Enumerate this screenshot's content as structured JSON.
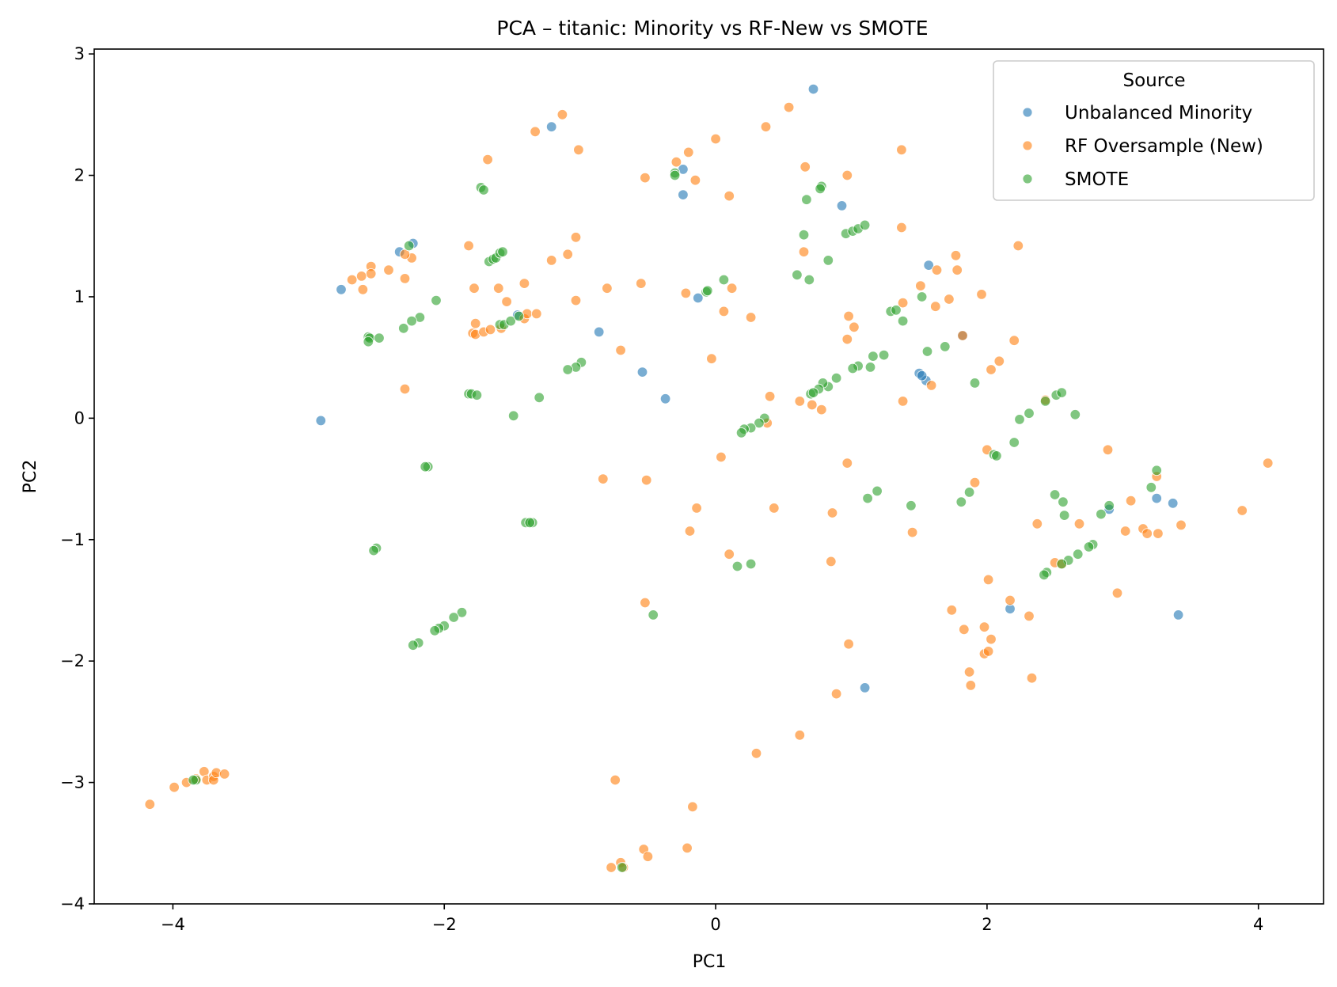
{
  "chart_data": {
    "type": "scatter",
    "title": "PCA – titanic: Minority vs RF-New vs SMOTE",
    "xlabel": "PC1",
    "ylabel": "PC2",
    "xlim": [
      -4.58,
      4.48
    ],
    "ylim": [
      -4.0,
      3.04
    ],
    "xticks": [
      -4,
      -2,
      0,
      2,
      4
    ],
    "yticks": [
      -4,
      -3,
      -2,
      -1,
      0,
      1,
      2,
      3
    ],
    "xtick_labels": [
      "−4",
      "−2",
      "0",
      "2",
      "4"
    ],
    "ytick_labels": [
      "−4",
      "−3",
      "−2",
      "−1",
      "0",
      "1",
      "2",
      "3"
    ],
    "grid": false,
    "legend": {
      "title": "Source",
      "placement": "top-right"
    },
    "series": [
      {
        "name": "Unbalanced Minority",
        "color": "#1f77b4",
        "points": [
          [
            0.72,
            2.71
          ],
          [
            -1.21,
            2.4
          ],
          [
            -0.24,
            2.05
          ],
          [
            -0.24,
            1.84
          ],
          [
            0.93,
            1.75
          ],
          [
            -2.76,
            1.06
          ],
          [
            -2.33,
            1.37
          ],
          [
            -2.23,
            1.44
          ],
          [
            -0.13,
            0.99
          ],
          [
            1.57,
            1.26
          ],
          [
            -1.46,
            0.85
          ],
          [
            -0.86,
            0.71
          ],
          [
            -0.54,
            0.38
          ],
          [
            -0.37,
            0.16
          ],
          [
            -2.91,
            -0.02
          ],
          [
            1.5,
            0.37
          ],
          [
            1.55,
            0.31
          ],
          [
            1.82,
            0.68
          ],
          [
            2.9,
            -0.75
          ],
          [
            3.25,
            -0.66
          ],
          [
            3.37,
            -0.7
          ],
          [
            2.17,
            -1.57
          ],
          [
            3.41,
            -1.62
          ],
          [
            1.1,
            -2.22
          ],
          [
            1.52,
            0.35
          ]
        ]
      },
      {
        "name": "RF Oversample (New)",
        "color": "#ff7f0e",
        "points": [
          [
            -1.13,
            2.5
          ],
          [
            -1.33,
            2.36
          ],
          [
            -1.01,
            2.21
          ],
          [
            -1.68,
            2.13
          ],
          [
            -0.52,
            1.98
          ],
          [
            -0.29,
            2.11
          ],
          [
            -0.2,
            2.19
          ],
          [
            -0.15,
            1.96
          ],
          [
            0.0,
            2.3
          ],
          [
            0.1,
            1.83
          ],
          [
            0.37,
            2.4
          ],
          [
            0.54,
            2.56
          ],
          [
            0.66,
            2.07
          ],
          [
            0.97,
            2.0
          ],
          [
            1.37,
            2.21
          ],
          [
            -1.03,
            1.49
          ],
          [
            -1.09,
            1.35
          ],
          [
            -1.21,
            1.3
          ],
          [
            -1.82,
            1.42
          ],
          [
            -2.24,
            1.32
          ],
          [
            -2.29,
            1.35
          ],
          [
            -2.54,
            1.25
          ],
          [
            -2.54,
            1.19
          ],
          [
            -2.61,
            1.17
          ],
          [
            -2.68,
            1.14
          ],
          [
            -2.6,
            1.06
          ],
          [
            -2.29,
            1.15
          ],
          [
            -2.41,
            1.22
          ],
          [
            -1.78,
            1.07
          ],
          [
            -1.6,
            1.07
          ],
          [
            -1.41,
            1.11
          ],
          [
            -1.03,
            0.97
          ],
          [
            -0.8,
            1.07
          ],
          [
            -0.55,
            1.11
          ],
          [
            -0.22,
            1.03
          ],
          [
            0.12,
            1.07
          ],
          [
            0.06,
            0.88
          ],
          [
            -0.03,
            0.49
          ],
          [
            0.26,
            0.83
          ],
          [
            -1.54,
            0.96
          ],
          [
            -1.77,
            0.78
          ],
          [
            -1.79,
            0.7
          ],
          [
            -1.77,
            0.69
          ],
          [
            -1.71,
            0.71
          ],
          [
            -1.66,
            0.73
          ],
          [
            -1.58,
            0.74
          ],
          [
            -1.41,
            0.82
          ],
          [
            -1.39,
            0.86
          ],
          [
            -1.32,
            0.86
          ],
          [
            -0.7,
            0.56
          ],
          [
            -2.29,
            0.24
          ],
          [
            0.65,
            1.37
          ],
          [
            1.37,
            1.57
          ],
          [
            1.51,
            1.09
          ],
          [
            1.38,
            0.95
          ],
          [
            1.63,
            1.22
          ],
          [
            1.62,
            0.92
          ],
          [
            1.72,
            0.98
          ],
          [
            1.77,
            1.34
          ],
          [
            1.78,
            1.22
          ],
          [
            1.96,
            1.02
          ],
          [
            1.82,
            0.68
          ],
          [
            2.23,
            1.42
          ],
          [
            0.98,
            0.84
          ],
          [
            1.02,
            0.75
          ],
          [
            0.97,
            0.65
          ],
          [
            0.4,
            0.18
          ],
          [
            0.62,
            0.14
          ],
          [
            0.71,
            0.11
          ],
          [
            0.78,
            0.07
          ],
          [
            1.38,
            0.14
          ],
          [
            1.59,
            0.27
          ],
          [
            2.03,
            0.4
          ],
          [
            2.2,
            0.64
          ],
          [
            2.09,
            0.47
          ],
          [
            2.43,
            0.15
          ],
          [
            0.38,
            -0.04
          ],
          [
            0.04,
            -0.32
          ],
          [
            0.97,
            -0.37
          ],
          [
            -0.83,
            -0.5
          ],
          [
            -0.51,
            -0.51
          ],
          [
            -0.14,
            -0.74
          ],
          [
            -0.19,
            -0.93
          ],
          [
            0.43,
            -0.74
          ],
          [
            0.86,
            -0.78
          ],
          [
            1.45,
            -0.94
          ],
          [
            0.1,
            -1.12
          ],
          [
            0.85,
            -1.18
          ],
          [
            2.0,
            -0.26
          ],
          [
            1.91,
            -0.53
          ],
          [
            2.89,
            -0.26
          ],
          [
            3.25,
            -0.48
          ],
          [
            3.06,
            -0.68
          ],
          [
            2.37,
            -0.87
          ],
          [
            2.68,
            -0.87
          ],
          [
            3.02,
            -0.93
          ],
          [
            3.15,
            -0.91
          ],
          [
            3.18,
            -0.95
          ],
          [
            3.26,
            -0.95
          ],
          [
            3.43,
            -0.88
          ],
          [
            3.88,
            -0.76
          ],
          [
            4.07,
            -0.37
          ],
          [
            2.01,
            -1.33
          ],
          [
            2.5,
            -1.19
          ],
          [
            2.55,
            -1.2
          ],
          [
            2.17,
            -1.5
          ],
          [
            2.31,
            -1.63
          ],
          [
            2.96,
            -1.44
          ],
          [
            1.74,
            -1.58
          ],
          [
            1.83,
            -1.74
          ],
          [
            1.98,
            -1.72
          ],
          [
            2.03,
            -1.82
          ],
          [
            1.98,
            -1.94
          ],
          [
            2.01,
            -1.92
          ],
          [
            1.87,
            -2.09
          ],
          [
            1.88,
            -2.2
          ],
          [
            2.33,
            -2.14
          ],
          [
            0.98,
            -1.86
          ],
          [
            -0.52,
            -1.52
          ],
          [
            0.89,
            -2.27
          ],
          [
            0.62,
            -2.61
          ],
          [
            0.3,
            -2.76
          ],
          [
            -0.74,
            -2.98
          ],
          [
            -0.17,
            -3.2
          ],
          [
            -0.21,
            -3.54
          ],
          [
            -0.53,
            -3.55
          ],
          [
            -0.5,
            -3.61
          ],
          [
            -0.7,
            -3.66
          ],
          [
            -0.77,
            -3.7
          ],
          [
            -0.68,
            -3.7
          ],
          [
            -4.17,
            -3.18
          ],
          [
            -3.99,
            -3.04
          ],
          [
            -3.9,
            -3.0
          ],
          [
            -3.83,
            -2.97
          ],
          [
            -3.77,
            -2.91
          ],
          [
            -3.75,
            -2.98
          ],
          [
            -3.7,
            -2.95
          ],
          [
            -3.7,
            -2.98
          ],
          [
            -3.68,
            -2.92
          ],
          [
            -3.62,
            -2.93
          ]
        ]
      },
      {
        "name": "SMOTE",
        "color": "#2ca02c",
        "points": [
          [
            -1.73,
            1.9
          ],
          [
            -1.71,
            1.88
          ],
          [
            -0.3,
            2.02
          ],
          [
            -0.3,
            2.0
          ],
          [
            0.78,
            1.91
          ],
          [
            0.77,
            1.89
          ],
          [
            0.67,
            1.8
          ],
          [
            0.65,
            1.51
          ],
          [
            0.6,
            1.18
          ],
          [
            0.69,
            1.14
          ],
          [
            0.83,
            1.3
          ],
          [
            0.96,
            1.52
          ],
          [
            1.01,
            1.54
          ],
          [
            1.05,
            1.56
          ],
          [
            1.1,
            1.59
          ],
          [
            -1.67,
            1.29
          ],
          [
            -1.64,
            1.31
          ],
          [
            -1.62,
            1.32
          ],
          [
            -1.59,
            1.36
          ],
          [
            -1.57,
            1.37
          ],
          [
            -2.26,
            1.42
          ],
          [
            -2.06,
            0.97
          ],
          [
            -2.18,
            0.83
          ],
          [
            -2.24,
            0.8
          ],
          [
            -2.3,
            0.74
          ],
          [
            -2.56,
            0.67
          ],
          [
            -2.55,
            0.66
          ],
          [
            -2.56,
            0.63
          ],
          [
            -2.48,
            0.66
          ],
          [
            -0.07,
            1.04
          ],
          [
            -0.06,
            1.05
          ],
          [
            0.06,
            1.14
          ],
          [
            -1.59,
            0.77
          ],
          [
            -1.56,
            0.77
          ],
          [
            -1.51,
            0.8
          ],
          [
            -1.45,
            0.84
          ],
          [
            -1.82,
            0.2
          ],
          [
            -1.8,
            0.2
          ],
          [
            -1.76,
            0.19
          ],
          [
            -1.3,
            0.17
          ],
          [
            -1.49,
            0.02
          ],
          [
            -0.99,
            0.46
          ],
          [
            -1.03,
            0.42
          ],
          [
            -1.09,
            0.4
          ],
          [
            1.29,
            0.88
          ],
          [
            1.33,
            0.89
          ],
          [
            1.52,
            1.0
          ],
          [
            1.38,
            0.8
          ],
          [
            1.56,
            0.55
          ],
          [
            1.69,
            0.59
          ],
          [
            1.16,
            0.51
          ],
          [
            1.24,
            0.52
          ],
          [
            1.14,
            0.42
          ],
          [
            1.05,
            0.43
          ],
          [
            1.01,
            0.41
          ],
          [
            1.91,
            0.29
          ],
          [
            0.89,
            0.33
          ],
          [
            0.83,
            0.26
          ],
          [
            0.79,
            0.29
          ],
          [
            0.76,
            0.24
          ],
          [
            0.7,
            0.2
          ],
          [
            0.72,
            0.21
          ],
          [
            0.36,
            0.0
          ],
          [
            0.32,
            -0.04
          ],
          [
            0.26,
            -0.08
          ],
          [
            0.21,
            -0.09
          ],
          [
            0.19,
            -0.12
          ],
          [
            2.51,
            0.19
          ],
          [
            2.55,
            0.21
          ],
          [
            2.43,
            0.14
          ],
          [
            2.31,
            0.04
          ],
          [
            2.24,
            -0.01
          ],
          [
            2.65,
            0.03
          ],
          [
            2.2,
            -0.2
          ],
          [
            2.05,
            -0.3
          ],
          [
            2.07,
            -0.31
          ],
          [
            -2.12,
            -0.4
          ],
          [
            -2.14,
            -0.4
          ],
          [
            1.12,
            -0.66
          ],
          [
            1.19,
            -0.6
          ],
          [
            1.44,
            -0.72
          ],
          [
            1.81,
            -0.69
          ],
          [
            1.87,
            -0.61
          ],
          [
            -1.4,
            -0.86
          ],
          [
            -1.35,
            -0.86
          ],
          [
            -1.37,
            -0.86
          ],
          [
            -2.5,
            -1.07
          ],
          [
            -2.52,
            -1.09
          ],
          [
            2.5,
            -0.63
          ],
          [
            2.56,
            -0.69
          ],
          [
            2.57,
            -0.8
          ],
          [
            2.84,
            -0.79
          ],
          [
            2.9,
            -0.72
          ],
          [
            3.21,
            -0.57
          ],
          [
            3.25,
            -0.43
          ],
          [
            0.16,
            -1.22
          ],
          [
            0.26,
            -1.2
          ],
          [
            2.78,
            -1.04
          ],
          [
            2.75,
            -1.06
          ],
          [
            2.67,
            -1.12
          ],
          [
            2.6,
            -1.17
          ],
          [
            2.55,
            -1.2
          ],
          [
            2.44,
            -1.27
          ],
          [
            2.42,
            -1.29
          ],
          [
            -0.46,
            -1.62
          ],
          [
            -1.87,
            -1.6
          ],
          [
            -1.93,
            -1.64
          ],
          [
            -2.0,
            -1.71
          ],
          [
            -2.04,
            -1.73
          ],
          [
            -2.07,
            -1.75
          ],
          [
            -2.19,
            -1.85
          ],
          [
            -2.23,
            -1.87
          ],
          [
            -0.69,
            -3.7
          ],
          [
            -3.83,
            -2.98
          ],
          [
            -3.85,
            -2.98
          ]
        ]
      }
    ]
  }
}
